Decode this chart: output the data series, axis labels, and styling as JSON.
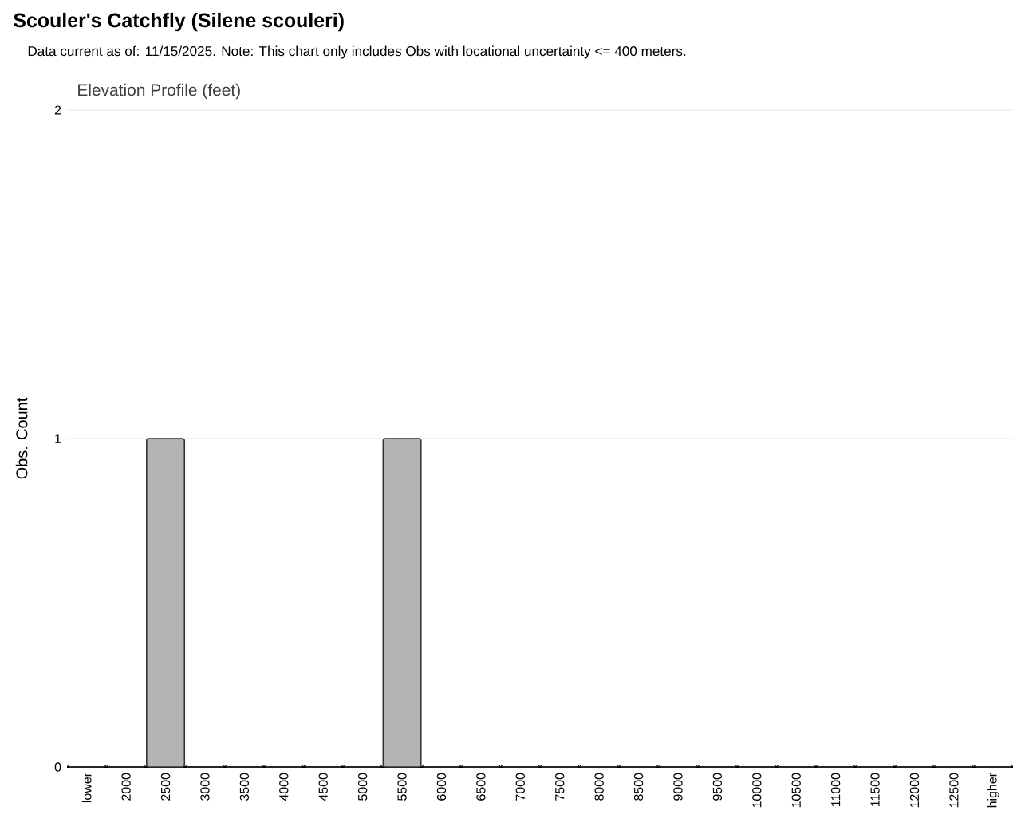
{
  "chart_data": {
    "type": "bar",
    "title": "Scouler's Catchfly   (Silene scouleri)",
    "subtitle": "Data current as of: 11/15/2025.    Note: This chart only includes Obs with locational uncertainty <= 400 meters.",
    "annotations": [
      "Elevation Profile (feet)"
    ],
    "ylabel": "Obs. Count",
    "categories": [
      "lower",
      "2000",
      "2500",
      "3000",
      "3500",
      "4000",
      "4500",
      "5000",
      "5500",
      "6000",
      "6500",
      "7000",
      "7500",
      "8000",
      "8500",
      "9000",
      "9500",
      "10000",
      "10500",
      "11000",
      "11500",
      "12000",
      "12500",
      "higher"
    ],
    "values": [
      0,
      0,
      1,
      0,
      0,
      0,
      0,
      0,
      1,
      0,
      0,
      0,
      0,
      0,
      0,
      0,
      0,
      0,
      0,
      0,
      0,
      0,
      0,
      0
    ],
    "color": "#b4b4b4",
    "ylim": [
      0,
      2
    ],
    "yticks": [
      0,
      1,
      2
    ],
    "grid": "y"
  }
}
